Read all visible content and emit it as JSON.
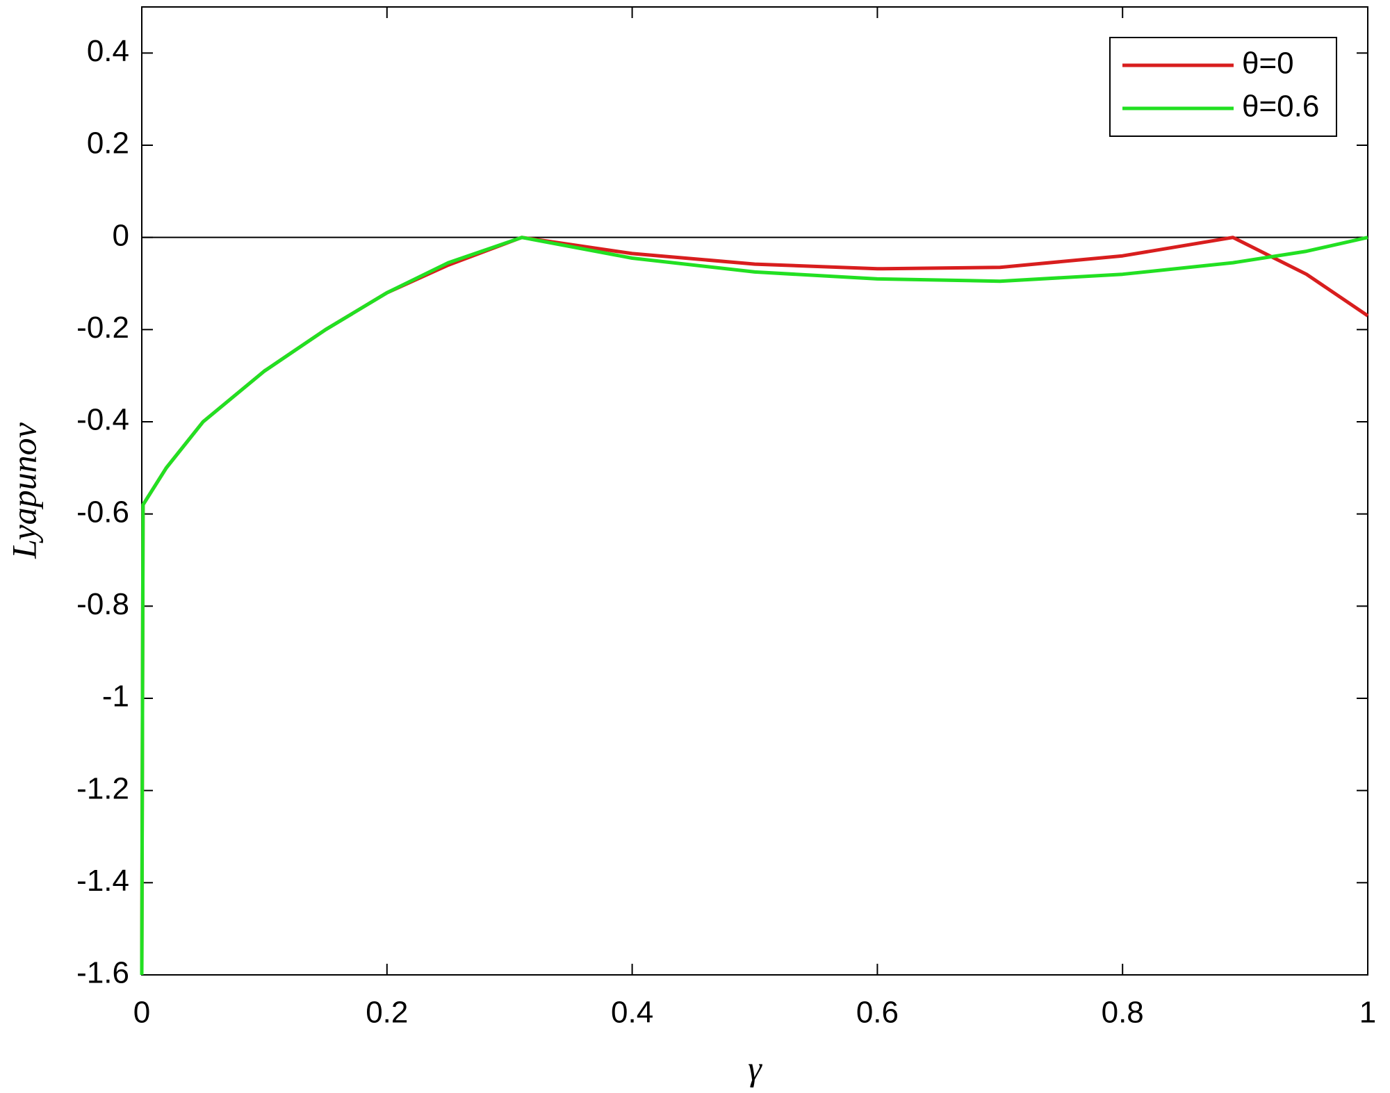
{
  "chart_data": {
    "type": "line",
    "x_label": "γ",
    "y_label": "Lyapunov",
    "x": [
      0,
      0.001,
      0.02,
      0.05,
      0.1,
      0.15,
      0.2,
      0.25,
      0.31,
      0.4,
      0.5,
      0.6,
      0.7,
      0.8,
      0.89,
      0.95,
      1
    ],
    "series": [
      {
        "name": "θ=0",
        "color": "#d81e1e",
        "values": [
          -1.6,
          -0.58,
          -0.5,
          -0.4,
          -0.29,
          -0.2,
          -0.12,
          -0.06,
          0,
          -0.035,
          -0.058,
          -0.068,
          -0.065,
          -0.04,
          0,
          -0.08,
          -0.17
        ]
      },
      {
        "name": "θ=0.6",
        "color": "#22e022",
        "values": [
          -1.6,
          -0.58,
          -0.5,
          -0.4,
          -0.29,
          -0.2,
          -0.12,
          -0.055,
          0,
          -0.045,
          -0.075,
          -0.09,
          -0.095,
          -0.08,
          -0.055,
          -0.03,
          0
        ]
      }
    ],
    "hline": 0,
    "xlim": [
      0,
      1
    ],
    "xticks": [
      0,
      0.2,
      0.4,
      0.6,
      0.8,
      1
    ],
    "ylim": [
      -1.6,
      0.5
    ],
    "yticks": [
      -1.6,
      -1.4,
      -1.2,
      -1,
      -0.8,
      -0.6,
      -0.4,
      -0.2,
      0,
      0.2,
      0.4
    ],
    "legend": "northeast"
  }
}
